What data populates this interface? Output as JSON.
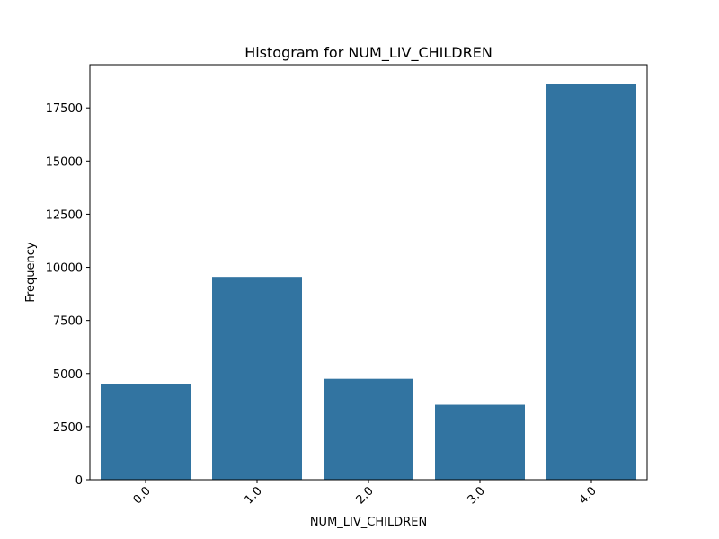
{
  "chart_data": {
    "type": "bar",
    "title": "Histogram for NUM_LIV_CHILDREN",
    "xlabel": "NUM_LIV_CHILDREN",
    "ylabel": "Frequency",
    "categories": [
      "0.0",
      "1.0",
      "2.0",
      "3.0",
      "4.0"
    ],
    "values": [
      4500,
      9550,
      4750,
      3530,
      18650
    ],
    "ylim": [
      0,
      18650
    ],
    "yticks": [
      0,
      2500,
      5000,
      7500,
      10000,
      12500,
      15000,
      17500
    ],
    "ytick_labels": [
      "0",
      "2500",
      "5000",
      "7500",
      "10000",
      "12500",
      "15000",
      "17500"
    ],
    "bar_color": "#3274a1",
    "grid": false,
    "xtick_rotation": 45
  }
}
